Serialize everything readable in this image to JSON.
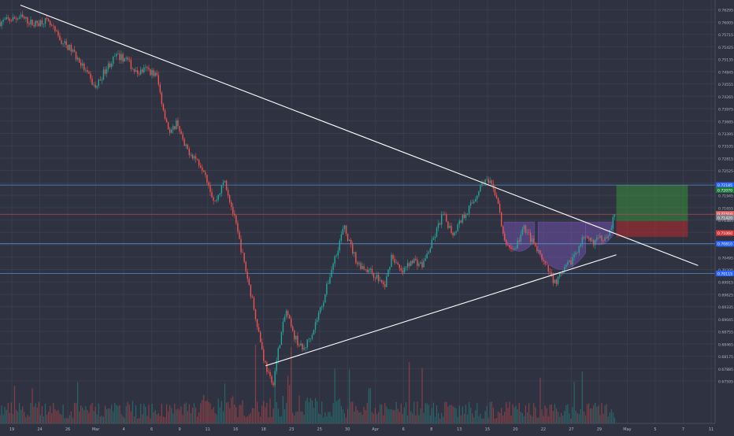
{
  "chart_data": {
    "type": "candlestick",
    "title": "",
    "xlabel": "",
    "ylabel": "",
    "grid": true,
    "y_range": [
      0.666,
      0.7652
    ],
    "y_ticks": [
      "0.76585",
      "0.76295",
      "0.76005",
      "0.75715",
      "0.75425",
      "0.75135",
      "0.74845",
      "0.74555",
      "0.74265",
      "0.73975",
      "0.73685",
      "0.73395",
      "0.73105",
      "0.72815",
      "0.72525",
      "0.72235",
      "0.71945",
      "0.71655",
      "0.71365",
      "0.71075",
      "0.70785",
      "0.70495",
      "0.70205",
      "0.69915",
      "0.69625",
      "0.69335",
      "0.69045",
      "0.68755",
      "0.68465",
      "0.68175",
      "0.67885",
      "0.67595"
    ],
    "x_ticks": [
      "19",
      "24",
      "26",
      "Mar",
      "4",
      "6",
      "9",
      "11",
      "16",
      "18",
      "23",
      "25",
      "30",
      "Apr",
      "6",
      "8",
      "13",
      "15",
      "20",
      "22",
      "27",
      "29",
      "May",
      "5",
      "7",
      "11"
    ],
    "price_path": [
      {
        "t": 0,
        "p": 0.76
      },
      {
        "t": 12,
        "p": 0.7612
      },
      {
        "t": 20,
        "p": 0.7595
      },
      {
        "t": 26,
        "p": 0.7605
      },
      {
        "t": 30,
        "p": 0.759
      },
      {
        "t": 36,
        "p": 0.7555
      },
      {
        "t": 42,
        "p": 0.7535
      },
      {
        "t": 48,
        "p": 0.75
      },
      {
        "t": 56,
        "p": 0.7445
      },
      {
        "t": 62,
        "p": 0.749
      },
      {
        "t": 68,
        "p": 0.752
      },
      {
        "t": 74,
        "p": 0.7515
      },
      {
        "t": 80,
        "p": 0.748
      },
      {
        "t": 86,
        "p": 0.749
      },
      {
        "t": 92,
        "p": 0.7475
      },
      {
        "t": 96,
        "p": 0.7395
      },
      {
        "t": 100,
        "p": 0.7335
      },
      {
        "t": 104,
        "p": 0.737
      },
      {
        "t": 108,
        "p": 0.731
      },
      {
        "t": 114,
        "p": 0.7285
      },
      {
        "t": 120,
        "p": 0.7255
      },
      {
        "t": 126,
        "p": 0.7175
      },
      {
        "t": 132,
        "p": 0.723
      },
      {
        "t": 138,
        "p": 0.7135
      },
      {
        "t": 144,
        "p": 0.7025
      },
      {
        "t": 150,
        "p": 0.6915
      },
      {
        "t": 155,
        "p": 0.681
      },
      {
        "t": 160,
        "p": 0.6745
      },
      {
        "t": 164,
        "p": 0.6845
      },
      {
        "t": 168,
        "p": 0.6925
      },
      {
        "t": 172,
        "p": 0.687
      },
      {
        "t": 178,
        "p": 0.683
      },
      {
        "t": 184,
        "p": 0.688
      },
      {
        "t": 190,
        "p": 0.695
      },
      {
        "t": 196,
        "p": 0.704
      },
      {
        "t": 202,
        "p": 0.712
      },
      {
        "t": 206,
        "p": 0.7075
      },
      {
        "t": 210,
        "p": 0.7035
      },
      {
        "t": 216,
        "p": 0.702
      },
      {
        "t": 222,
        "p": 0.7
      },
      {
        "t": 226,
        "p": 0.698
      },
      {
        "t": 230,
        "p": 0.7055
      },
      {
        "t": 236,
        "p": 0.701
      },
      {
        "t": 242,
        "p": 0.7045
      },
      {
        "t": 248,
        "p": 0.703
      },
      {
        "t": 254,
        "p": 0.7085
      },
      {
        "t": 260,
        "p": 0.715
      },
      {
        "t": 266,
        "p": 0.7105
      },
      {
        "t": 272,
        "p": 0.7145
      },
      {
        "t": 278,
        "p": 0.718
      },
      {
        "t": 284,
        "p": 0.723
      },
      {
        "t": 288,
        "p": 0.722
      },
      {
        "t": 292,
        "p": 0.719
      },
      {
        "t": 296,
        "p": 0.7085
      },
      {
        "t": 302,
        "p": 0.7065
      },
      {
        "t": 308,
        "p": 0.712
      },
      {
        "t": 314,
        "p": 0.7075
      },
      {
        "t": 320,
        "p": 0.703
      },
      {
        "t": 326,
        "p": 0.699
      },
      {
        "t": 330,
        "p": 0.701
      },
      {
        "t": 336,
        "p": 0.7045
      },
      {
        "t": 342,
        "p": 0.709
      },
      {
        "t": 348,
        "p": 0.7085
      },
      {
        "t": 354,
        "p": 0.7095
      },
      {
        "t": 358,
        "p": 0.7108
      },
      {
        "t": 361,
        "p": 0.715
      }
    ],
    "t_range": [
      0,
      420
    ],
    "volume_range": [
      0,
      1
    ],
    "trendlines": [
      {
        "t1": 12,
        "p1": 0.764,
        "t2": 410,
        "p2": 0.703
      },
      {
        "t1": 156,
        "p1": 0.6795,
        "t2": 362,
        "p2": 0.7055
      }
    ],
    "price_levels": [
      {
        "price": 0.72185,
        "color": "#5b9bd5",
        "label": "0.72185"
      },
      {
        "price": 0.715,
        "color": "#c0504d",
        "label": "0.71500"
      },
      {
        "price": 0.7081,
        "color": "#5b9bd5",
        "label": "0.70810"
      },
      {
        "price": 0.70115,
        "color": "#5b9bd5",
        "label": "0.70115"
      }
    ],
    "axis_badges": [
      {
        "price": 0.72185,
        "color": "#2962ff",
        "label": "0.72185"
      },
      {
        "price": 0.7207,
        "color": "#1b7a3a",
        "label": "0.72070"
      },
      {
        "price": 0.7151,
        "color": "#e06666",
        "label": "0.71510"
      },
      {
        "price": 0.7142,
        "color": "#7d7f8c",
        "label": "0.71420"
      },
      {
        "price": 0.7106,
        "color": "#d23b3b",
        "label": "0.71060"
      },
      {
        "price": 0.7081,
        "color": "#2962ff",
        "label": "0.70810"
      },
      {
        "price": 0.70115,
        "color": "#2962ff",
        "label": "0.70115"
      }
    ],
    "position_box": {
      "t_start": 362,
      "t_end": 404,
      "target": 0.72185,
      "entry": 0.7134,
      "stop": 0.7097
    },
    "pattern": {
      "type": "inverse-head-and-shoulders",
      "neckline": 0.7132,
      "left_shoulder": {
        "t1": 296,
        "t2": 314,
        "low": 0.7055
      },
      "head": {
        "t1": 316,
        "t2": 344,
        "low": 0.7
      },
      "right_shoulder": {
        "t1": 344,
        "t2": 360,
        "low": 0.7075
      }
    },
    "colors": {
      "up": "#26a69a",
      "down": "#ef5350",
      "background": "#2f3241",
      "grid": "#3a3d4c",
      "axis_text": "#b2b5be",
      "trendline": "#ffffff",
      "pattern": "#7e57c2"
    }
  }
}
